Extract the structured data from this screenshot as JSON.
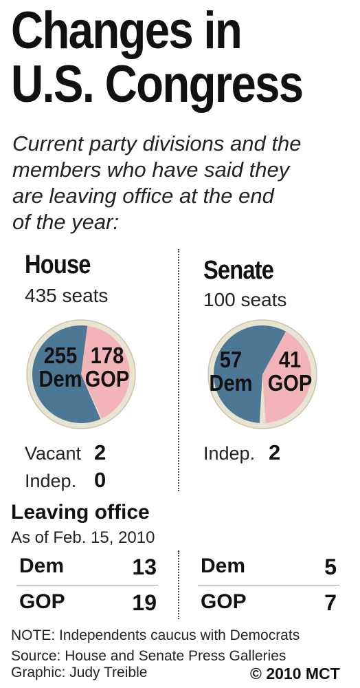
{
  "title_line1": "Changes in",
  "title_line2": "U.S. Congress",
  "subtitle_lines": [
    "Current party divisions and the",
    "members who have said they",
    "are leaving office at the end",
    "of the year:"
  ],
  "colors": {
    "dem": "#4c7896",
    "gop": "#f2b4b6",
    "rim": "#e8e4d2",
    "rim_stroke": "#c9c4ac"
  },
  "chart_data": [
    {
      "type": "pie",
      "title": "House",
      "subtitle": "435 seats",
      "slices": [
        {
          "label": "Dem",
          "value": 255
        },
        {
          "label": "GOP",
          "value": 178
        },
        {
          "label": "Vacant",
          "value": 2
        },
        {
          "label": "Indep.",
          "value": 0
        }
      ],
      "extras": [
        {
          "label": "Vacant",
          "value": "2"
        },
        {
          "label": "Indep.",
          "value": "0"
        }
      ]
    },
    {
      "type": "pie",
      "title": "Senate",
      "subtitle": "100 seats",
      "slices": [
        {
          "label": "Dem",
          "value": 57
        },
        {
          "label": "GOP",
          "value": 41
        },
        {
          "label": "Indep.",
          "value": 2
        }
      ],
      "extras": [
        {
          "label": "Indep.",
          "value": "2"
        }
      ]
    },
    {
      "type": "table",
      "title": "Leaving office",
      "subtitle": "As of Feb. 15, 2010",
      "columns": [
        "House",
        "Senate"
      ],
      "rows": [
        {
          "party": "Dem",
          "house": 13,
          "senate": 5
        },
        {
          "party": "GOP",
          "house": 19,
          "senate": 7
        }
      ]
    }
  ],
  "footer": {
    "note": "NOTE: Independents caucus with Democrats",
    "source": "Source:  House and Senate Press Galleries",
    "graphic": "Graphic: Judy Treible",
    "copyright": "© 2010 MCT"
  }
}
